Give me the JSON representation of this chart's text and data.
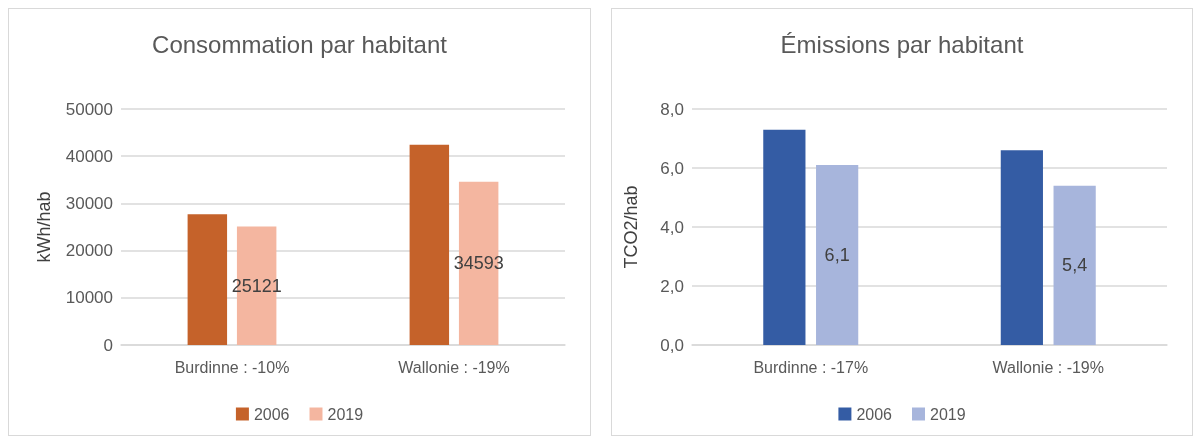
{
  "chart_data": [
    {
      "type": "bar",
      "title": "Consommation par habitant",
      "ylabel": "kWh/hab",
      "categories": [
        "Burdinne : -10%",
        "Wallonie : -19%"
      ],
      "ylim": [
        0,
        50000
      ],
      "yticks": [
        0,
        10000,
        20000,
        30000,
        40000,
        50000
      ],
      "grid": "y",
      "legend": "bottom",
      "series": [
        {
          "name": "2006",
          "color": "#c5622a",
          "values": [
            27700,
            42400
          ]
        },
        {
          "name": "2019",
          "color": "#f4b6a0",
          "values": [
            25121,
            34593
          ],
          "value_labels": [
            "25121",
            "34593"
          ]
        }
      ]
    },
    {
      "type": "bar",
      "title": "Émissions par habitant",
      "ylabel": "TCO2/hab",
      "categories": [
        "Burdinne : -17%",
        "Wallonie : -19%"
      ],
      "ylim": [
        0,
        8
      ],
      "yticks": [
        {
          "value": 0,
          "label": "0,0"
        },
        {
          "value": 2,
          "label": "2,0"
        },
        {
          "value": 4,
          "label": "4,0"
        },
        {
          "value": 6,
          "label": "6,0"
        },
        {
          "value": 8,
          "label": "8,0"
        }
      ],
      "grid": "y",
      "legend": "bottom",
      "series": [
        {
          "name": "2006",
          "color": "#345ca4",
          "values": [
            7.3,
            6.6
          ]
        },
        {
          "name": "2019",
          "color": "#a7b5dc",
          "values": [
            6.1,
            5.4
          ],
          "value_labels": [
            "6,1",
            "5,4"
          ]
        }
      ]
    }
  ]
}
